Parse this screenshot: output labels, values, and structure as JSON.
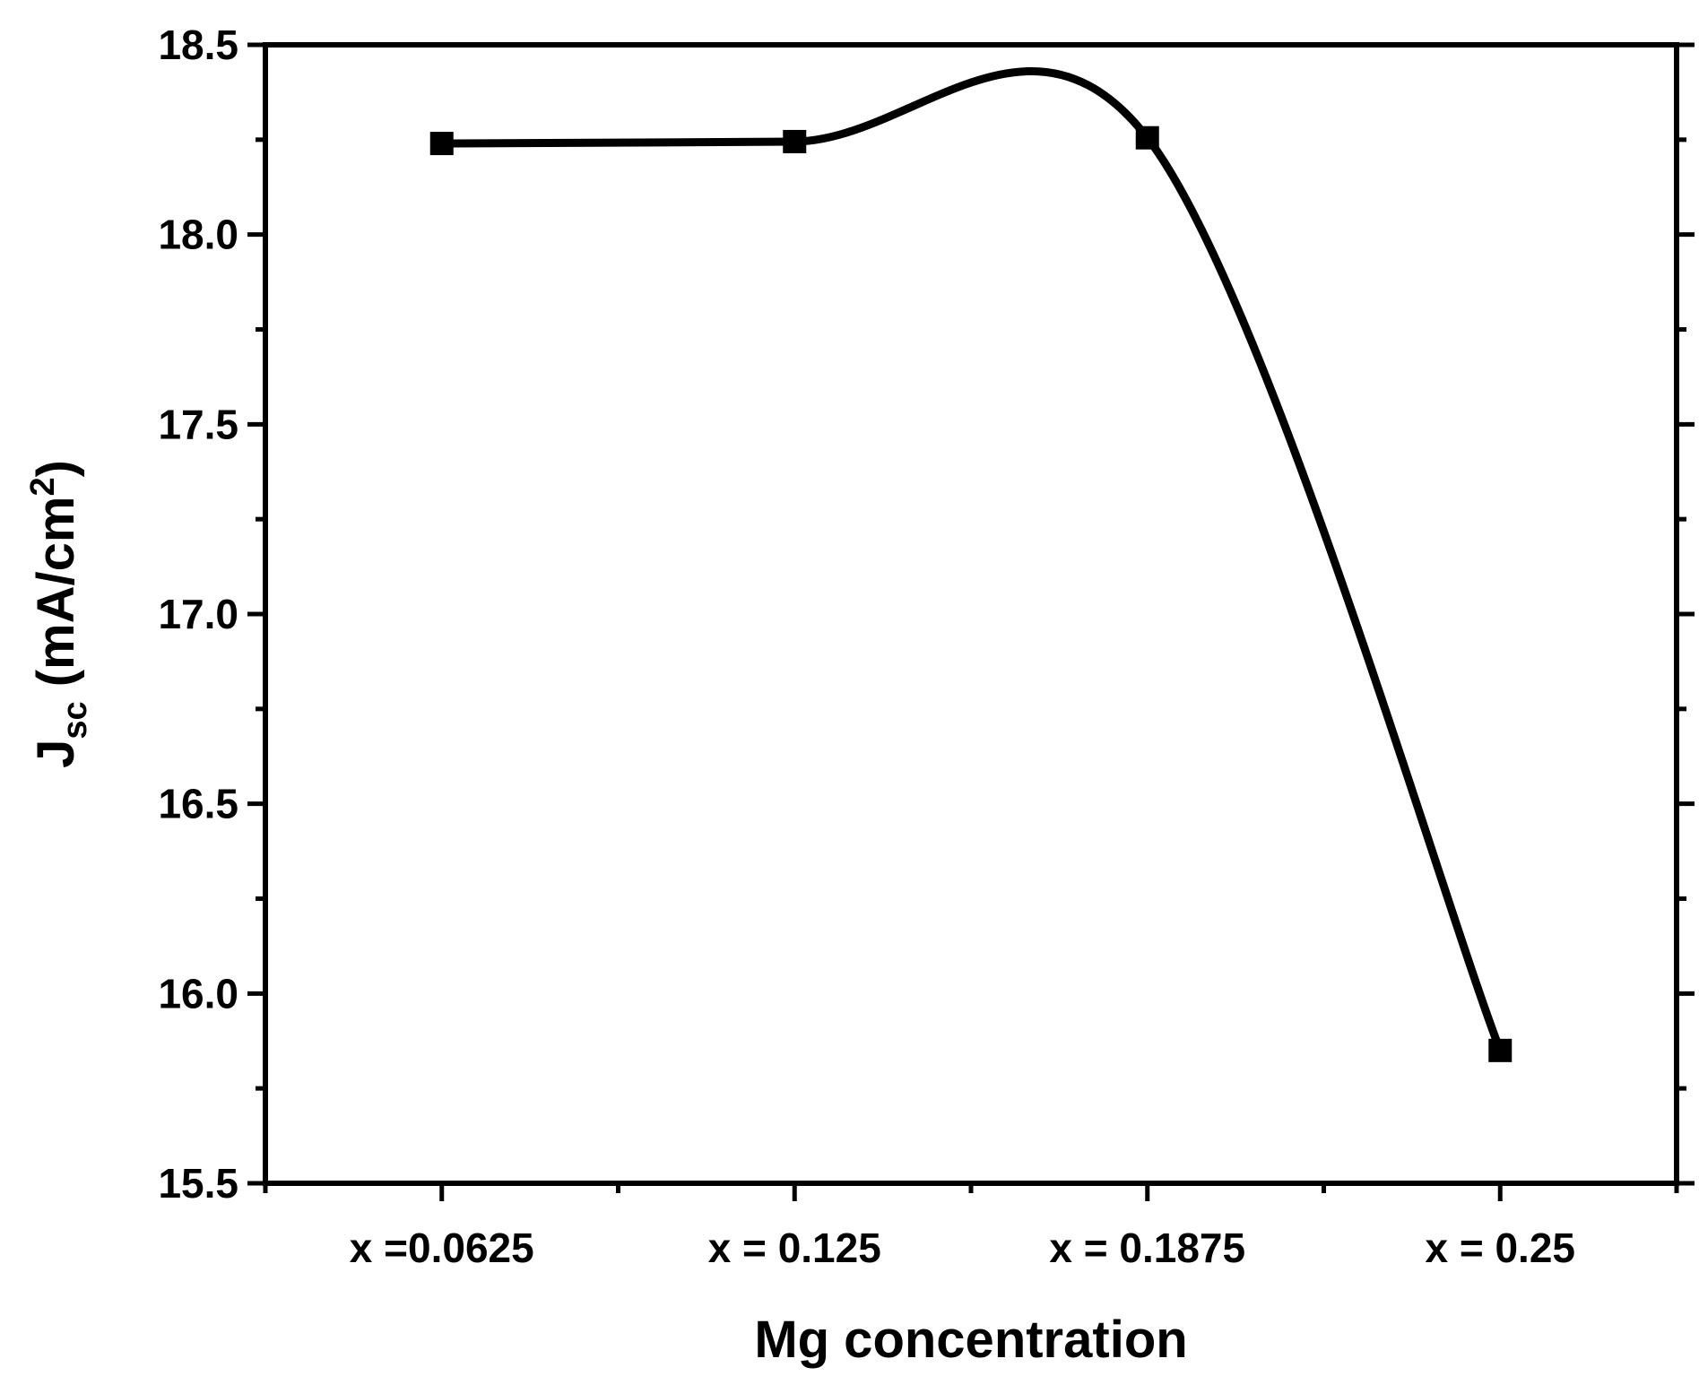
{
  "chart_data": {
    "type": "line",
    "categories": [
      "x =0.0625",
      "x = 0.125",
      "x = 0.1875",
      "x = 0.25"
    ],
    "series": [
      {
        "values": [
          18.24,
          18.245,
          18.255,
          15.85
        ],
        "line_style": "smooth spline",
        "marker": "square",
        "color": "#000000"
      }
    ],
    "xlabel": "Mg concentration",
    "ylabel": {
      "main": "J",
      "subscript": "sc",
      "unit_prefix": " (mA/cm",
      "superscript": "2",
      "unit_suffix": ")"
    },
    "ylim": [
      15.5,
      18.5
    ],
    "yticks": [
      15.5,
      16.0,
      16.5,
      17.0,
      17.5,
      18.0,
      18.5
    ],
    "ytick_labels": [
      "15.5",
      "16.0",
      "16.5",
      "17.0",
      "17.5",
      "18.0",
      "18.5"
    ],
    "y_minor_ticks": true,
    "x_minor_ticks": true,
    "mirror_ticks": true,
    "grid": false,
    "legend": "none",
    "axis_color": "#000000"
  }
}
